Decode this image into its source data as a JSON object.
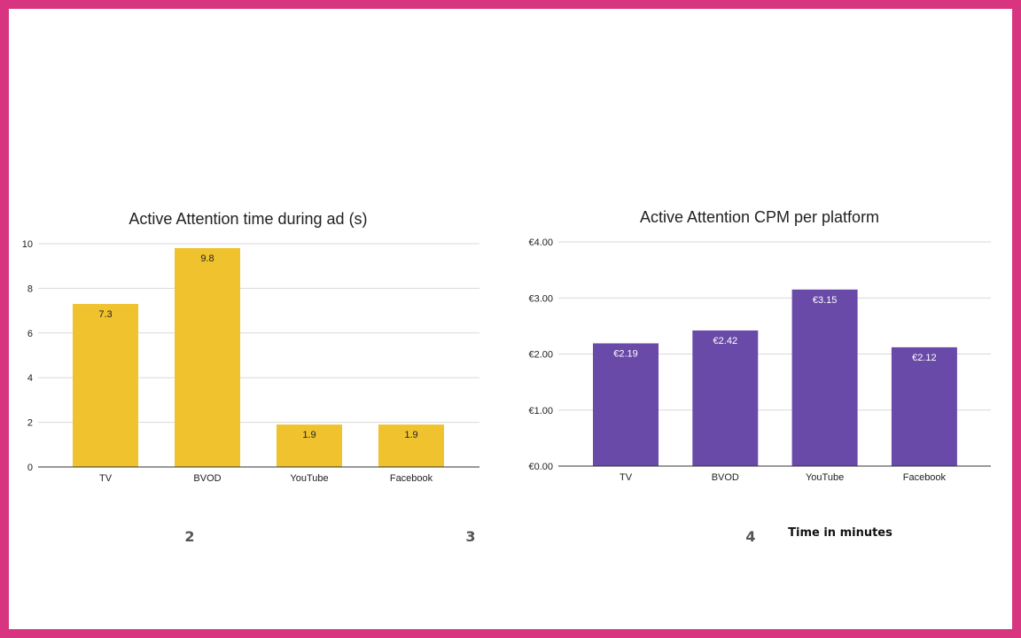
{
  "colors": {
    "border": "#d8347f",
    "chart1_bar": "#f0c22e",
    "chart2_bar": "#6a4aa8"
  },
  "chart_data": [
    {
      "type": "bar",
      "title": "Active Attention time during ad (s)",
      "categories": [
        "TV",
        "BVOD",
        "YouTube",
        "Facebook"
      ],
      "values": [
        7.3,
        9.8,
        1.9,
        1.9
      ],
      "data_labels": [
        "7.3",
        "9.8",
        "1.9",
        "1.9"
      ],
      "yticks": [
        "0",
        "2",
        "4",
        "6",
        "8",
        "10"
      ],
      "ylim": [
        0,
        10
      ],
      "grid": true,
      "xlabel": "",
      "ylabel": ""
    },
    {
      "type": "bar",
      "title": "Active Attention CPM per platform",
      "categories": [
        "TV",
        "BVOD",
        "YouTube",
        "Facebook"
      ],
      "values": [
        2.19,
        2.42,
        3.15,
        2.12
      ],
      "data_labels": [
        "€2.19",
        "€2.42",
        "€3.15",
        "€2.12"
      ],
      "yticks": [
        "€0.00",
        "€1.00",
        "€2.00",
        "€3.00",
        "€4.00"
      ],
      "ylim": [
        0,
        4
      ],
      "grid": true,
      "xlabel": "",
      "ylabel": ""
    }
  ],
  "annotations": {
    "page_num_2": "2",
    "page_num_3": "3",
    "page_num_4": "4",
    "time_note": "Time in minutes"
  }
}
